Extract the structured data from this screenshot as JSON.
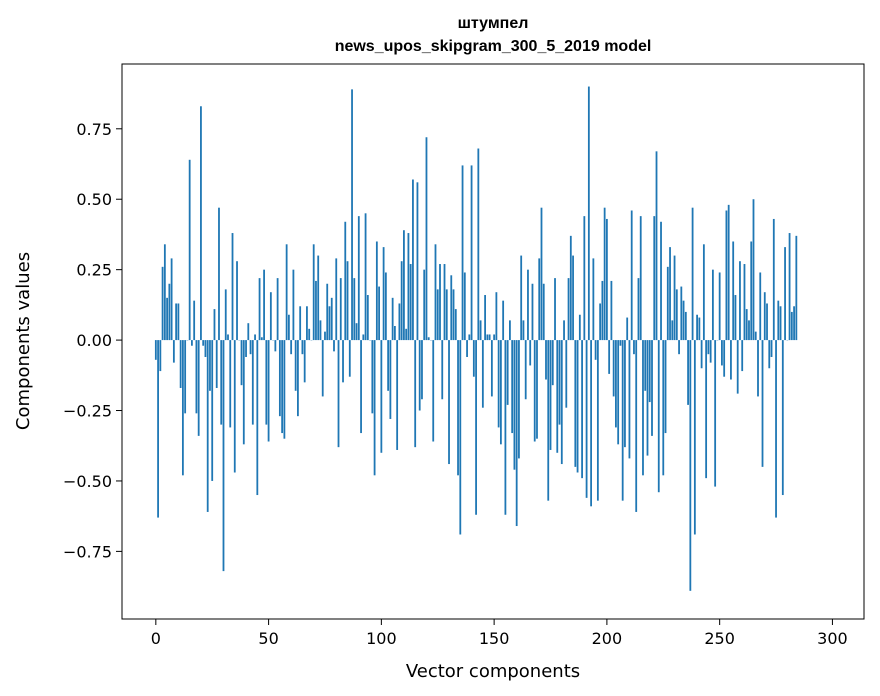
{
  "chart_data": {
    "type": "bar",
    "title_line1": "штумпел",
    "title_line2": "news_upos_skipgram_300_5_2019 model",
    "xlabel": "Vector components",
    "ylabel": "Components values",
    "xlim": [
      -15,
      314
    ],
    "ylim": [
      -0.99,
      0.98
    ],
    "x_ticks": [
      0,
      50,
      100,
      150,
      200,
      250,
      300
    ],
    "y_ticks": [
      -0.75,
      -0.5,
      -0.25,
      0.0,
      0.25,
      0.5,
      0.75
    ],
    "y_tick_labels": [
      "−0.75",
      "−0.50",
      "−0.25",
      "0.00",
      "0.25",
      "0.50",
      "0.75"
    ],
    "bar_color": "#1f77b4",
    "grid": false,
    "legend": "none",
    "values": [
      -0.07,
      -0.63,
      -0.11,
      0.26,
      0.34,
      0.15,
      0.2,
      0.29,
      -0.08,
      0.13,
      0.13,
      -0.17,
      -0.48,
      -0.26,
      0.0,
      0.64,
      -0.02,
      0.14,
      -0.26,
      -0.34,
      0.83,
      -0.02,
      -0.06,
      -0.61,
      -0.18,
      -0.5,
      0.11,
      -0.17,
      0.47,
      -0.3,
      -0.82,
      0.18,
      0.02,
      -0.31,
      0.38,
      -0.47,
      0.28,
      0.0,
      -0.16,
      -0.37,
      -0.06,
      0.06,
      -0.05,
      -0.3,
      0.02,
      -0.55,
      0.22,
      0.01,
      0.25,
      -0.3,
      -0.36,
      0.17,
      0.0,
      -0.04,
      0.22,
      -0.27,
      -0.33,
      -0.35,
      0.34,
      0.09,
      -0.05,
      0.25,
      -0.18,
      -0.27,
      0.12,
      -0.05,
      -0.15,
      0.12,
      0.04,
      0.0,
      0.34,
      0.21,
      0.3,
      0.07,
      -0.2,
      0.03,
      0.2,
      0.12,
      0.15,
      -0.04,
      0.29,
      -0.38,
      0.22,
      -0.15,
      0.42,
      0.28,
      -0.13,
      0.89,
      0.22,
      0.06,
      0.44,
      -0.33,
      0.02,
      0.45,
      0.16,
      0.0,
      -0.26,
      -0.48,
      0.35,
      0.19,
      -0.4,
      0.33,
      0.24,
      -0.18,
      -0.28,
      0.15,
      0.05,
      -0.39,
      0.13,
      0.28,
      0.39,
      0.04,
      0.38,
      0.27,
      0.57,
      -0.38,
      0.56,
      -0.25,
      -0.21,
      0.25,
      0.72,
      0.01,
      0.0,
      -0.36,
      0.34,
      0.18,
      0.27,
      -0.21,
      0.27,
      0.18,
      -0.44,
      0.23,
      0.18,
      0.11,
      -0.48,
      -0.69,
      0.62,
      0.24,
      -0.06,
      0.02,
      0.62,
      -0.13,
      -0.62,
      0.68,
      0.07,
      -0.24,
      0.16,
      0.02,
      0.02,
      -0.2,
      0.02,
      0.17,
      -0.31,
      -0.37,
      0.14,
      -0.62,
      -0.23,
      0.07,
      -0.33,
      -0.46,
      -0.66,
      -0.42,
      0.3,
      0.07,
      -0.21,
      0.25,
      -0.09,
      0.2,
      -0.36,
      -0.35,
      0.29,
      0.47,
      0.2,
      -0.14,
      -0.57,
      -0.39,
      -0.16,
      0.22,
      -0.4,
      -0.3,
      -0.44,
      0.07,
      -0.24,
      0.22,
      0.37,
      0.3,
      -0.45,
      -0.47,
      0.09,
      -0.49,
      0.44,
      -0.56,
      0.9,
      -0.59,
      0.29,
      -0.07,
      -0.57,
      0.13,
      0.21,
      0.47,
      0.43,
      -0.12,
      0.21,
      -0.2,
      -0.31,
      -0.37,
      -0.02,
      -0.57,
      -0.38,
      0.08,
      -0.42,
      0.46,
      -0.05,
      -0.61,
      0.22,
      0.44,
      -0.48,
      -0.18,
      -0.41,
      -0.22,
      -0.34,
      0.44,
      0.67,
      -0.54,
      0.42,
      -0.48,
      -0.33,
      0.26,
      0.33,
      0.07,
      0.3,
      0.18,
      -0.05,
      0.19,
      0.14,
      0.1,
      -0.23,
      -0.89,
      0.47,
      -0.69,
      0.09,
      0.08,
      -0.1,
      0.34,
      -0.49,
      -0.05,
      -0.08,
      0.25,
      -0.52,
      0.0,
      0.24,
      -0.09,
      -0.13,
      0.46,
      0.48,
      -0.14,
      0.35,
      0.16,
      -0.19,
      0.28,
      -0.11,
      0.27,
      0.11,
      0.07,
      0.35,
      0.5,
      0.03,
      -0.2,
      0.24,
      -0.45,
      0.17,
      0.13,
      -0.1,
      -0.06,
      0.43,
      -0.63,
      0.14,
      0.12,
      -0.55,
      0.33,
      0.0,
      0.38,
      0.1,
      0.12,
      0.37
    ]
  }
}
